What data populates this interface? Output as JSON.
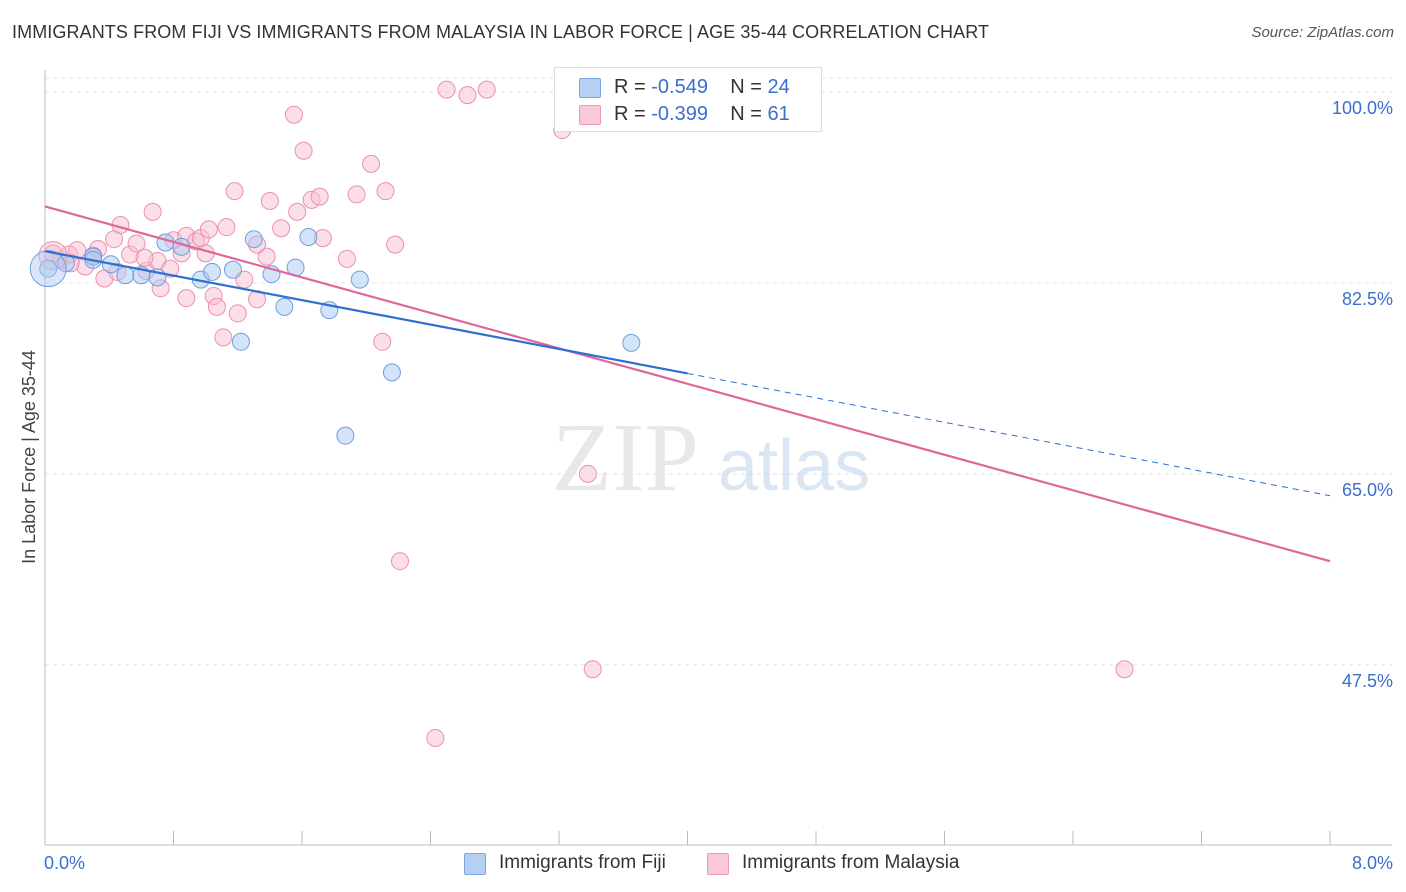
{
  "title": "IMMIGRANTS FROM FIJI VS IMMIGRANTS FROM MALAYSIA IN LABOR FORCE | AGE 35-44 CORRELATION CHART",
  "source": "Source: ZipAtlas.com",
  "watermark": {
    "zip": "ZIP",
    "atlas": "atlas"
  },
  "legend": {
    "fiji": {
      "r_label": "R =",
      "r_value": "-0.549",
      "n_label": "N =",
      "n_value": "24"
    },
    "malaysia": {
      "r_label": "R =",
      "r_value": "-0.399",
      "n_label": "N =",
      "n_value": "61"
    }
  },
  "colors": {
    "fiji_fill": "#aac8f0",
    "fiji_stroke": "#6f9fe0",
    "fiji_line": "#2f6fd0",
    "malaysia_fill": "#f7c0d2",
    "malaysia_stroke": "#ec8fb0",
    "malaysia_line": "#e0669a",
    "tick_label": "#3a6fcf",
    "grid": "#e3e3e3"
  },
  "chart_data": {
    "type": "scatter",
    "xlabel": "",
    "ylabel": "In Labor Force | Age 35-44",
    "xlim": [
      0,
      8
    ],
    "ylim": [
      31,
      102
    ],
    "x_tick_labels": [
      {
        "value": 0,
        "label": "0.0%"
      },
      {
        "value": 8,
        "label": "8.0%"
      }
    ],
    "y_ticks": [
      {
        "value": 100,
        "label": "100.0%"
      },
      {
        "value": 82.5,
        "label": "82.5%"
      },
      {
        "value": 65,
        "label": "65.0%"
      },
      {
        "value": 47.5,
        "label": "47.5%"
      }
    ],
    "grid": true,
    "legend_position": "top-center",
    "series": [
      {
        "name": "Immigrants from Fiji",
        "color": "#aac8f0",
        "points": [
          [
            0.02,
            83.8
          ],
          [
            0.13,
            84.3
          ],
          [
            0.3,
            84.9
          ],
          [
            0.41,
            84.2
          ],
          [
            0.5,
            83.2
          ],
          [
            0.6,
            83.2
          ],
          [
            0.7,
            83.0
          ],
          [
            0.75,
            86.2
          ],
          [
            0.85,
            85.8
          ],
          [
            0.97,
            82.8
          ],
          [
            1.04,
            83.5
          ],
          [
            1.17,
            83.7
          ],
          [
            1.22,
            77.1
          ],
          [
            1.3,
            86.5
          ],
          [
            1.41,
            83.3
          ],
          [
            1.49,
            80.3
          ],
          [
            1.56,
            83.9
          ],
          [
            1.64,
            86.7
          ],
          [
            1.77,
            80.0
          ],
          [
            1.87,
            68.5
          ],
          [
            1.96,
            82.8
          ],
          [
            2.16,
            74.3
          ],
          [
            3.65,
            77.0
          ],
          [
            0.3,
            84.6
          ]
        ],
        "trend": {
          "x0": 0,
          "y0": 85.4,
          "x1": 4.0,
          "y1": 74.2,
          "dashed_to_x": 8.0,
          "dashed_to_y": 63.0
        }
      },
      {
        "name": "Immigrants from Malaysia",
        "color": "#f7c0d2",
        "points": [
          [
            0.05,
            85.2
          ],
          [
            0.1,
            84.6
          ],
          [
            0.15,
            85.1
          ],
          [
            0.2,
            85.5
          ],
          [
            0.25,
            84.0
          ],
          [
            0.33,
            85.6
          ],
          [
            0.37,
            82.9
          ],
          [
            0.43,
            86.5
          ],
          [
            0.47,
            87.8
          ],
          [
            0.53,
            85.1
          ],
          [
            0.57,
            86.1
          ],
          [
            0.63,
            83.6
          ],
          [
            0.67,
            89.0
          ],
          [
            0.7,
            84.5
          ],
          [
            0.72,
            82.0
          ],
          [
            0.78,
            83.8
          ],
          [
            0.8,
            86.4
          ],
          [
            0.85,
            85.2
          ],
          [
            0.88,
            86.8
          ],
          [
            0.88,
            81.1
          ],
          [
            0.94,
            86.3
          ],
          [
            0.97,
            86.6
          ],
          [
            1.0,
            85.2
          ],
          [
            1.05,
            81.3
          ],
          [
            1.07,
            80.3
          ],
          [
            1.11,
            77.5
          ],
          [
            1.13,
            87.6
          ],
          [
            1.18,
            90.9
          ],
          [
            1.2,
            79.7
          ],
          [
            1.24,
            82.8
          ],
          [
            1.32,
            81.0
          ],
          [
            1.38,
            84.9
          ],
          [
            1.4,
            90.0
          ],
          [
            1.47,
            87.5
          ],
          [
            1.55,
            97.9
          ],
          [
            1.57,
            89.0
          ],
          [
            1.61,
            94.6
          ],
          [
            1.66,
            90.1
          ],
          [
            1.71,
            90.4
          ],
          [
            1.73,
            86.6
          ],
          [
            1.94,
            90.6
          ],
          [
            2.03,
            93.4
          ],
          [
            2.1,
            77.1
          ],
          [
            2.12,
            90.9
          ],
          [
            2.18,
            86.0
          ],
          [
            2.21,
            57.0
          ],
          [
            2.43,
            40.8
          ],
          [
            2.5,
            100.2
          ],
          [
            2.63,
            99.7
          ],
          [
            2.75,
            100.2
          ],
          [
            3.22,
            96.5
          ],
          [
            3.38,
            65.0
          ],
          [
            3.41,
            47.1
          ],
          [
            6.72,
            47.1
          ],
          [
            0.3,
            85.0
          ],
          [
            1.88,
            84.7
          ],
          [
            1.02,
            87.4
          ],
          [
            0.62,
            84.8
          ],
          [
            1.32,
            86.0
          ],
          [
            0.16,
            84.3
          ],
          [
            0.45,
            83.5
          ]
        ],
        "trend": {
          "x0": 0,
          "y0": 89.5,
          "x1": 8.0,
          "y1": 57.0
        }
      }
    ]
  },
  "bottom_legend": {
    "fiji": "Immigrants from Fiji",
    "malaysia": "Immigrants from Malaysia"
  }
}
